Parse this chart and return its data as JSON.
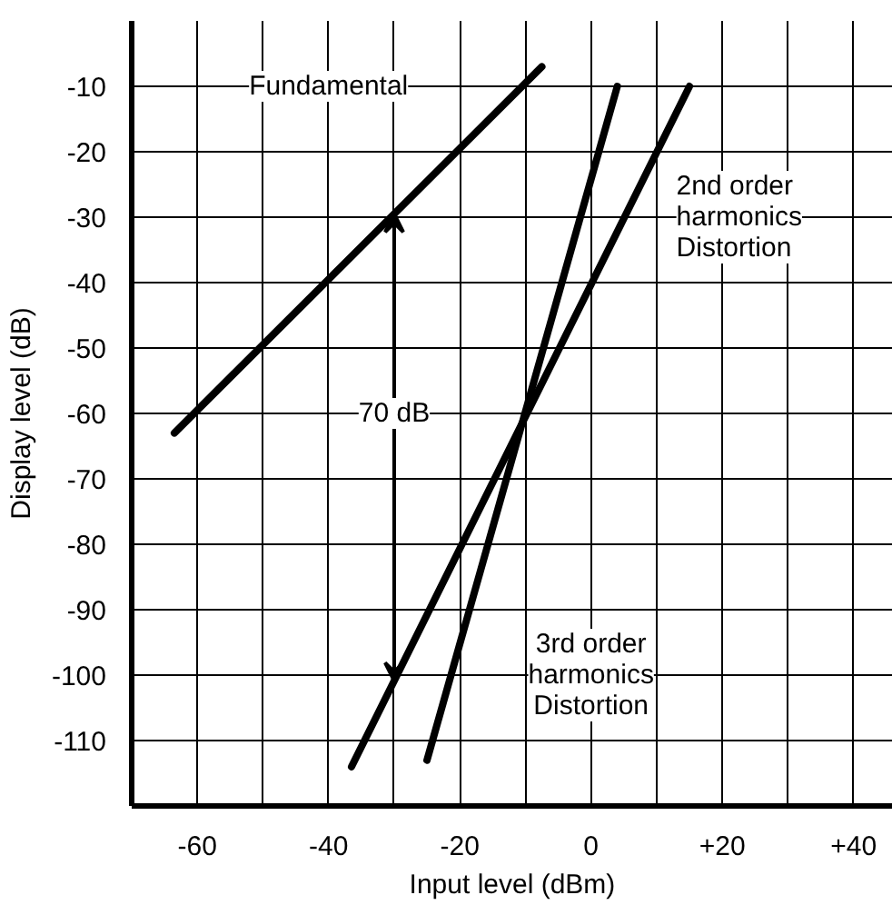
{
  "chart_data": {
    "type": "line",
    "xlabel": "Input level (dBm)",
    "ylabel": "Display level (dB)",
    "series": [
      {
        "name": "Fundamental",
        "color": "#000000",
        "x": [
          -63.5,
          -7.5
        ],
        "values": [
          -63,
          -7
        ]
      },
      {
        "name": "2nd order\nharmonics\nDistortion",
        "color": "#000000",
        "x": [
          -36.5,
          15
        ],
        "values": [
          -114,
          -10
        ]
      },
      {
        "name": "3rd order\nharmonics\nDistortion",
        "color": "#000000",
        "x": [
          -25,
          4
        ],
        "values": [
          -113,
          -10
        ]
      }
    ],
    "annotations": [
      {
        "text": "70 dB",
        "x": -30,
        "y": -60
      }
    ],
    "xlim": [
      -70,
      46
    ],
    "ylim": [
      -120,
      0
    ],
    "xticks": [
      -60,
      {
        "value": -50,
        "label": null
      },
      -40,
      {
        "value": -30,
        "label": null
      },
      -20,
      {
        "value": -10,
        "label": null
      },
      0,
      {
        "value": 10,
        "label": null
      },
      {
        "value": 20,
        "label": "+20"
      },
      {
        "value": 30,
        "label": null
      },
      {
        "value": 40,
        "label": "+40"
      }
    ],
    "yticks": [
      -10,
      -20,
      -30,
      -40,
      -50,
      -60,
      -70,
      -80,
      -90,
      -100,
      -110
    ],
    "grid": true,
    "marker": "none",
    "line_style": "solid"
  }
}
